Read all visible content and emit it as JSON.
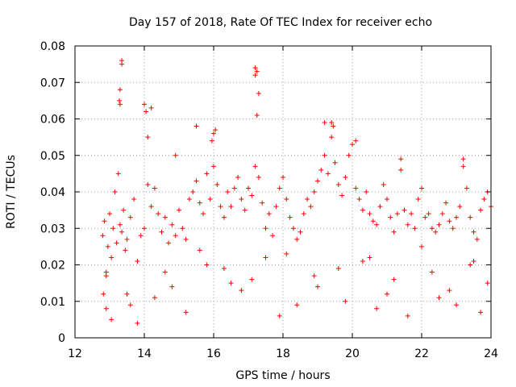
{
  "chart_data": {
    "type": "scatter",
    "title": "Day 157 of 2018, Rate Of TEC Index for receiver echo",
    "xlabel": "GPS time / hours",
    "ylabel": "ROTI / TECUs",
    "xlim": [
      12,
      24
    ],
    "ylim": [
      0,
      0.08
    ],
    "xticks": [
      12,
      14,
      16,
      18,
      20,
      22,
      24
    ],
    "xtick_labels": [
      "12",
      "14",
      "16",
      "18",
      "20",
      "22",
      "24"
    ],
    "yticks": [
      0,
      0.01,
      0.02,
      0.03,
      0.04,
      0.05,
      0.06,
      0.07,
      0.08
    ],
    "ytick_labels": [
      "0",
      "0.01",
      "0.02",
      "0.03",
      "0.04",
      "0.05",
      "0.06",
      "0.07",
      "0.08"
    ],
    "grid": true,
    "marker": "+",
    "series_color": "#ff0000",
    "points_x": [
      12.8,
      12.85,
      12.9,
      12.95,
      13.0,
      13.05,
      13.1,
      13.15,
      13.2,
      13.25,
      13.3,
      13.35,
      13.4,
      13.45,
      13.5,
      13.6,
      13.7,
      13.8,
      13.9,
      14.0,
      14.1,
      14.2,
      14.3,
      14.4,
      14.5,
      14.6,
      14.7,
      14.8,
      14.9,
      15.0,
      15.1,
      15.2,
      15.3,
      15.4,
      15.5,
      15.6,
      15.7,
      15.8,
      15.9,
      16.0,
      16.1,
      16.2,
      16.3,
      16.4,
      16.5,
      16.6,
      16.7,
      16.8,
      16.9,
      17.0,
      17.1,
      17.2,
      17.3,
      17.4,
      17.5,
      17.6,
      17.7,
      17.8,
      17.9,
      18.0,
      18.1,
      18.2,
      18.3,
      18.4,
      18.5,
      18.6,
      18.7,
      18.8,
      18.9,
      19.0,
      19.1,
      19.2,
      19.3,
      19.4,
      19.5,
      19.6,
      19.7,
      19.8,
      19.9,
      20.0,
      20.1,
      20.2,
      20.3,
      20.4,
      20.5,
      20.6,
      20.7,
      20.8,
      20.9,
      21.0,
      21.1,
      21.2,
      21.3,
      21.4,
      21.5,
      21.6,
      21.7,
      21.8,
      21.9,
      22.0,
      22.1,
      22.2,
      22.3,
      22.4,
      22.5,
      22.6,
      22.7,
      22.8,
      22.9,
      23.0,
      23.1,
      23.2,
      23.3,
      23.4,
      23.5,
      23.6,
      23.7,
      23.8,
      23.9,
      24.0,
      13.35,
      13.35,
      13.3,
      13.3,
      13.28,
      14.0,
      14.05,
      14.2,
      17.2,
      17.25,
      17.2,
      17.3,
      17.25,
      19.4,
      19.2,
      19.45,
      15.5,
      16.05,
      20.1,
      16.0,
      14.1,
      15.95,
      14.9,
      21.4,
      23.2,
      12.82,
      12.9,
      13.05,
      13.6,
      14.3,
      15.2,
      16.8,
      17.9,
      18.4,
      19.8,
      20.7,
      21.6,
      22.5,
      23.0,
      23.7,
      13.5,
      14.6,
      15.8,
      16.5,
      17.5,
      18.9,
      19.6,
      20.3,
      21.2,
      22.3,
      23.4,
      23.9,
      12.9,
      13.8,
      14.8,
      15.6,
      16.3,
      17.1,
      18.1,
      19.0,
      20.5,
      21.0,
      22.0,
      22.8,
      23.5
    ],
    "points_y": [
      0.028,
      0.032,
      0.018,
      0.025,
      0.034,
      0.022,
      0.03,
      0.04,
      0.026,
      0.045,
      0.031,
      0.029,
      0.035,
      0.024,
      0.027,
      0.033,
      0.038,
      0.021,
      0.028,
      0.03,
      0.042,
      0.036,
      0.041,
      0.034,
      0.029,
      0.033,
      0.026,
      0.031,
      0.028,
      0.035,
      0.03,
      0.027,
      0.038,
      0.04,
      0.043,
      0.037,
      0.034,
      0.045,
      0.038,
      0.047,
      0.042,
      0.036,
      0.033,
      0.04,
      0.036,
      0.041,
      0.044,
      0.038,
      0.035,
      0.041,
      0.039,
      0.047,
      0.044,
      0.037,
      0.03,
      0.034,
      0.028,
      0.036,
      0.041,
      0.044,
      0.038,
      0.033,
      0.03,
      0.027,
      0.029,
      0.034,
      0.038,
      0.036,
      0.04,
      0.043,
      0.046,
      0.05,
      0.045,
      0.055,
      0.048,
      0.042,
      0.039,
      0.044,
      0.05,
      0.053,
      0.041,
      0.038,
      0.035,
      0.04,
      0.034,
      0.032,
      0.031,
      0.036,
      0.042,
      0.038,
      0.033,
      0.029,
      0.034,
      0.046,
      0.035,
      0.031,
      0.034,
      0.03,
      0.038,
      0.041,
      0.033,
      0.034,
      0.03,
      0.029,
      0.031,
      0.034,
      0.037,
      0.032,
      0.03,
      0.033,
      0.036,
      0.047,
      0.041,
      0.033,
      0.029,
      0.027,
      0.035,
      0.038,
      0.04,
      0.036,
      0.076,
      0.075,
      0.068,
      0.064,
      0.065,
      0.064,
      0.062,
      0.063,
      0.074,
      0.073,
      0.072,
      0.067,
      0.061,
      0.059,
      0.059,
      0.058,
      0.058,
      0.057,
      0.054,
      0.056,
      0.055,
      0.054,
      0.05,
      0.049,
      0.049,
      0.012,
      0.008,
      0.005,
      0.009,
      0.011,
      0.007,
      0.013,
      0.006,
      0.009,
      0.01,
      0.008,
      0.006,
      0.011,
      0.009,
      0.007,
      0.012,
      0.018,
      0.02,
      0.015,
      0.022,
      0.017,
      0.019,
      0.021,
      0.016,
      0.018,
      0.02,
      0.015,
      0.017,
      0.004,
      0.014,
      0.024,
      0.019,
      0.016,
      0.023,
      0.014,
      0.022,
      0.012,
      0.025,
      0.013,
      0.021,
      0.016
    ]
  }
}
